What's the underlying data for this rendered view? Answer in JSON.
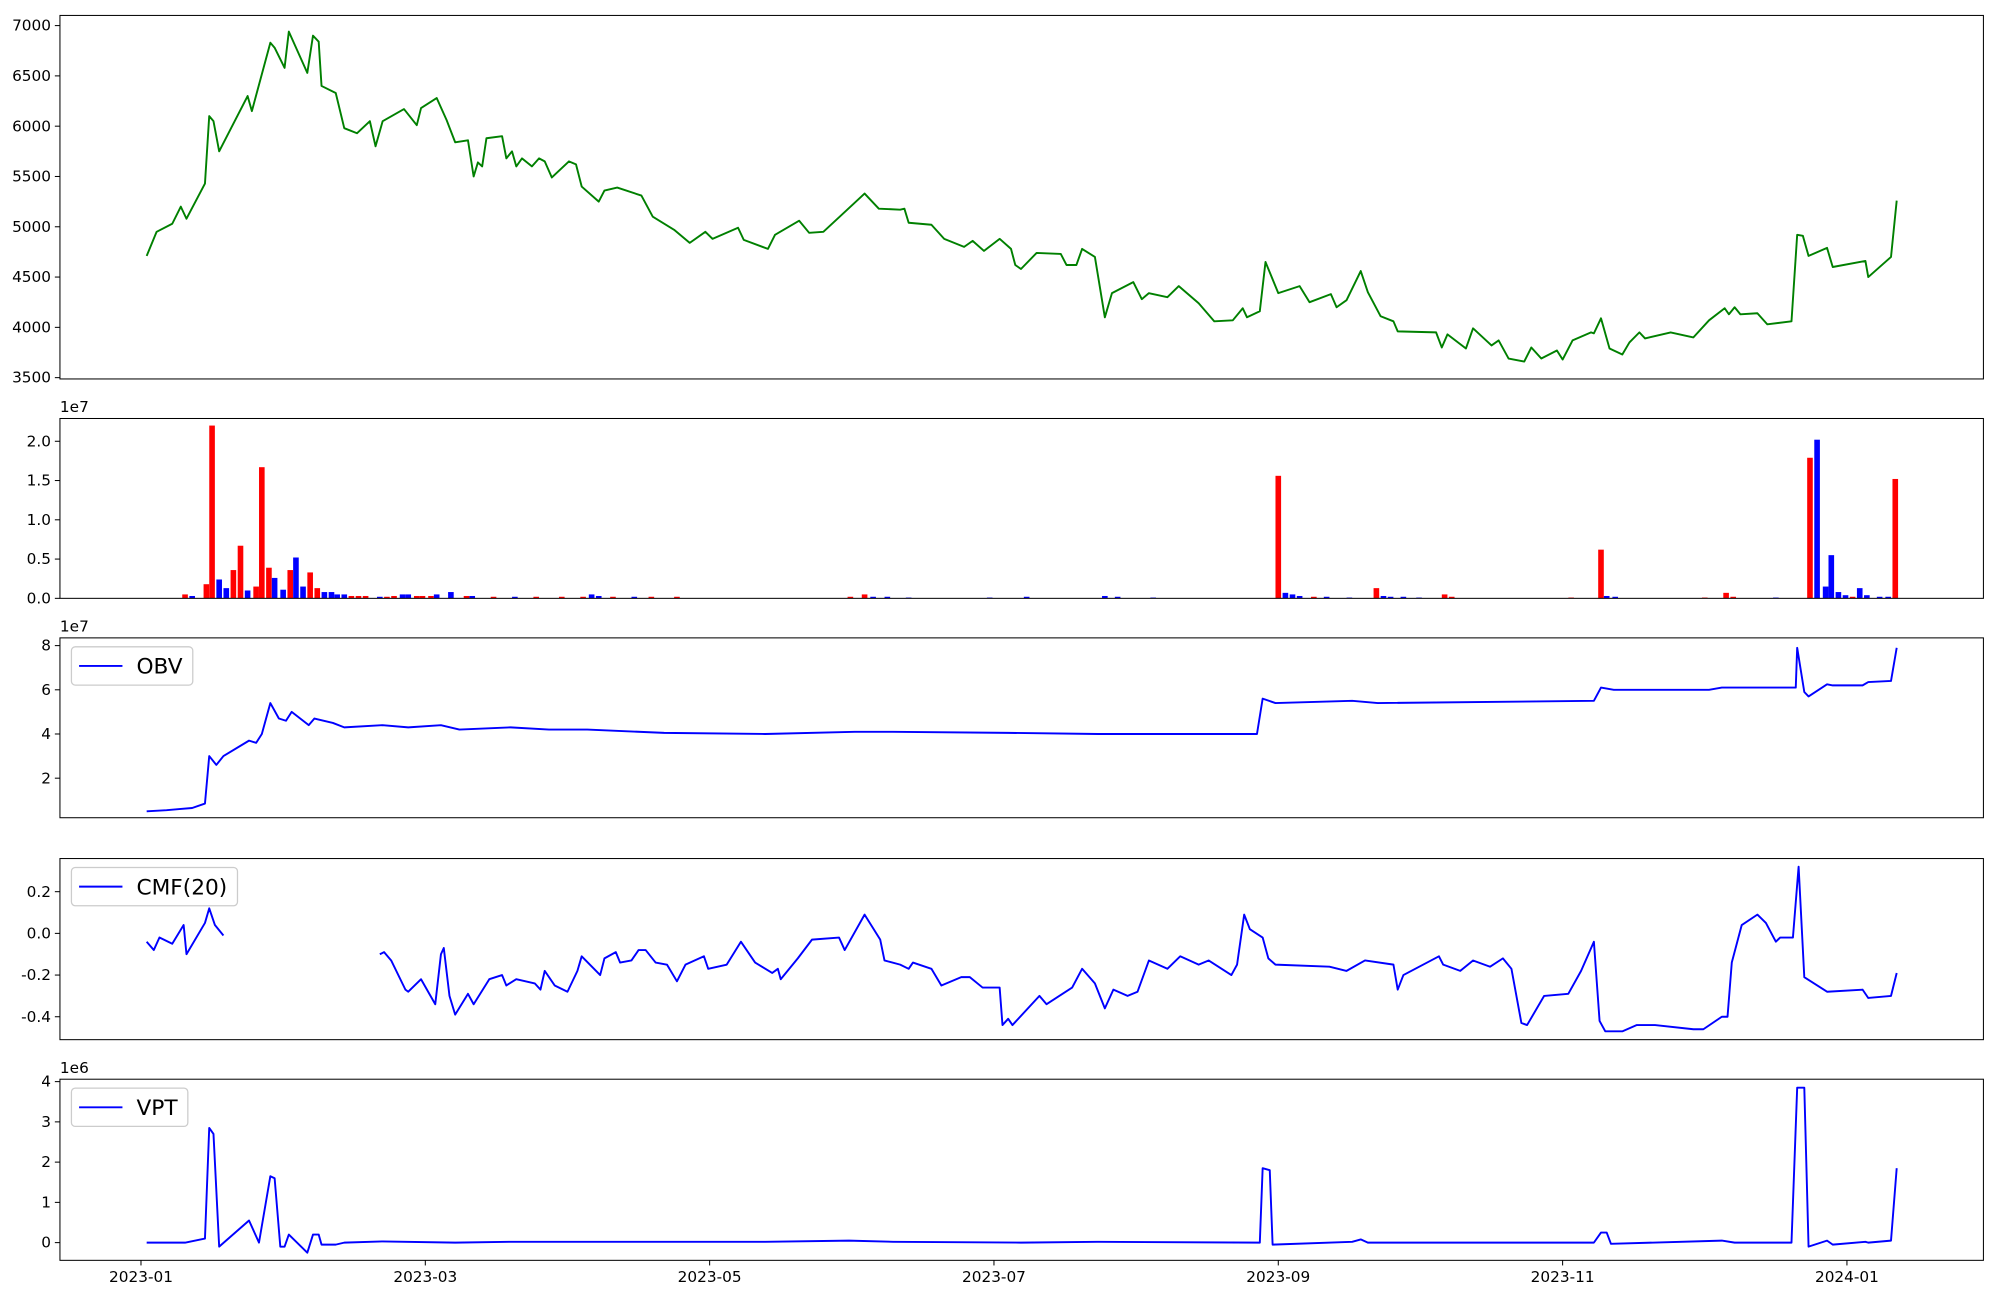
{
  "chart_data": [
    {
      "type": "line",
      "color": "green",
      "x": [
        0.04,
        0.11,
        0.22,
        0.28,
        0.32,
        0.45,
        0.48,
        0.51,
        0.55,
        0.75,
        0.78,
        0.91,
        0.94,
        1.01,
        1.04,
        1.17,
        1.21,
        1.25,
        1.27,
        1.37,
        1.43,
        1.52,
        1.61,
        1.65,
        1.7,
        1.85,
        1.94,
        1.97,
        2.08,
        2.15,
        2.21,
        2.3,
        2.34,
        2.37,
        2.4,
        2.43,
        2.54,
        2.57,
        2.61,
        2.64,
        2.68,
        2.75,
        2.8,
        2.84,
        2.89,
        3.01,
        3.06,
        3.1,
        3.22,
        3.26,
        3.35,
        3.52,
        3.6,
        3.75,
        3.86,
        3.97,
        4.02,
        4.2,
        4.24,
        4.41,
        4.46,
        4.63,
        4.7,
        4.8,
        4.93,
        5.09,
        5.19,
        5.34,
        5.37,
        5.4,
        5.56,
        5.65,
        5.79,
        5.85,
        5.93,
        6.04,
        6.12,
        6.15,
        6.19,
        6.3,
        6.47,
        6.51,
        6.58,
        6.62,
        6.71,
        6.78,
        6.83,
        6.98,
        7.04,
        7.09,
        7.22,
        7.3,
        7.44,
        7.55,
        7.68,
        7.75,
        7.78,
        7.87,
        7.91,
        8.0,
        8.15,
        8.22,
        8.37,
        8.41,
        8.48,
        8.58,
        8.63,
        8.72,
        8.81,
        8.84,
        9.11,
        9.15,
        9.19,
        9.32,
        9.37,
        9.5,
        9.55,
        9.62,
        9.73,
        9.78,
        9.85,
        9.96,
        10.0,
        10.07,
        10.2,
        10.22,
        10.27,
        10.33,
        10.42,
        10.47,
        10.54,
        10.58,
        10.76,
        10.92,
        11.03,
        11.14,
        11.17,
        11.21,
        11.25,
        11.37,
        11.44,
        11.61,
        11.65,
        11.69,
        11.73,
        11.86,
        11.9,
        12.13,
        12.15,
        12.31,
        12.35
      ],
      "values": [
        4710,
        4950,
        5030,
        5200,
        5080,
        5430,
        6100,
        6050,
        5750,
        6300,
        6150,
        6830,
        6780,
        6580,
        6940,
        6530,
        6900,
        6840,
        6400,
        6330,
        5980,
        5930,
        6050,
        5800,
        6050,
        6170,
        6010,
        6180,
        6280,
        6060,
        5840,
        5860,
        5500,
        5640,
        5600,
        5880,
        5900,
        5680,
        5750,
        5600,
        5680,
        5600,
        5680,
        5650,
        5490,
        5650,
        5620,
        5400,
        5250,
        5360,
        5390,
        5310,
        5100,
        4970,
        4840,
        4950,
        4880,
        4990,
        4870,
        4780,
        4920,
        5060,
        4940,
        4950,
        5120,
        5330,
        5180,
        5170,
        5180,
        5040,
        5020,
        4880,
        4800,
        4860,
        4760,
        4880,
        4780,
        4620,
        4580,
        4740,
        4730,
        4620,
        4620,
        4780,
        4700,
        4100,
        4340,
        4450,
        4280,
        4340,
        4300,
        4410,
        4240,
        4060,
        4070,
        4190,
        4100,
        4160,
        4650,
        4340,
        4410,
        4250,
        4330,
        4200,
        4270,
        4560,
        4350,
        4110,
        4060,
        3960,
        3950,
        3800,
        3930,
        3790,
        3990,
        3820,
        3870,
        3690,
        3660,
        3800,
        3690,
        3770,
        3680,
        3870,
        3950,
        3940,
        4090,
        3790,
        3730,
        3850,
        3950,
        3890,
        3950,
        3900,
        4070,
        4190,
        4130,
        4200,
        4130,
        4140,
        4030,
        4060,
        4920,
        4910,
        4710,
        4790,
        4600,
        4660,
        4500,
        4700,
        5260
      ],
      "xlim": [
        -0.57,
        12.96
      ],
      "ylim": [
        3487,
        7101
      ],
      "yticks": [
        3500,
        4000,
        4500,
        5000,
        5500,
        6000,
        6500,
        7000
      ]
    },
    {
      "type": "bar",
      "offset_label": "1e7",
      "x": [
        0.31,
        0.36,
        0.46,
        0.5,
        0.55,
        0.6,
        0.65,
        0.7,
        0.75,
        0.81,
        0.85,
        0.9,
        0.94,
        1.0,
        1.05,
        1.09,
        1.14,
        1.19,
        1.24,
        1.29,
        1.34,
        1.38,
        1.43,
        1.48,
        1.53,
        1.58,
        1.68,
        1.73,
        1.78,
        1.84,
        1.88,
        1.94,
        1.98,
        2.04,
        2.08,
        2.18,
        2.29,
        2.33,
        2.48,
        2.63,
        2.78,
        2.96,
        3.11,
        3.17,
        3.22,
        3.32,
        3.47,
        3.59,
        3.77,
        4.99,
        5.09,
        5.15,
        5.25,
        5.4,
        5.97,
        6.23,
        6.78,
        6.87,
        7.12,
        8.0,
        8.05,
        8.1,
        8.15,
        8.25,
        8.34,
        8.5,
        8.69,
        8.74,
        8.79,
        8.88,
        8.99,
        9.17,
        9.22,
        10.06,
        10.27,
        10.31,
        10.37,
        11.0,
        11.15,
        11.2,
        11.5,
        11.74,
        11.79,
        11.85,
        11.89,
        11.94,
        11.99,
        12.04,
        12.09,
        12.14,
        12.23,
        12.29,
        12.34
      ],
      "values": [
        0.05,
        0.03,
        0.18,
        2.2,
        0.24,
        0.13,
        0.36,
        0.67,
        0.1,
        0.15,
        1.67,
        0.39,
        0.26,
        0.11,
        0.36,
        0.52,
        0.15,
        0.33,
        0.13,
        0.08,
        0.08,
        0.05,
        0.05,
        0.03,
        0.03,
        0.03,
        0.02,
        0.02,
        0.03,
        0.05,
        0.05,
        0.03,
        0.03,
        0.03,
        0.05,
        0.08,
        0.03,
        0.03,
        0.02,
        0.02,
        0.02,
        0.02,
        0.02,
        0.05,
        0.03,
        0.02,
        0.02,
        0.02,
        0.02,
        0.02,
        0.05,
        0.02,
        0.02,
        0.01,
        0.01,
        0.02,
        0.03,
        0.02,
        0.01,
        1.56,
        0.07,
        0.05,
        0.03,
        0.02,
        0.02,
        0.01,
        0.13,
        0.03,
        0.02,
        0.02,
        0.01,
        0.05,
        0.02,
        0.01,
        0.62,
        0.03,
        0.02,
        0.01,
        0.07,
        0.02,
        0.01,
        1.79,
        2.02,
        0.15,
        0.55,
        0.08,
        0.04,
        0.02,
        0.13,
        0.04,
        0.02,
        0.02,
        1.52
      ],
      "colors": [
        "red",
        "blue",
        "red",
        "red",
        "blue",
        "blue",
        "red",
        "red",
        "blue",
        "red",
        "red",
        "red",
        "blue",
        "blue",
        "red",
        "blue",
        "blue",
        "red",
        "red",
        "blue",
        "blue",
        "blue",
        "blue",
        "red",
        "red",
        "red",
        "blue",
        "red",
        "red",
        "blue",
        "blue",
        "red",
        "red",
        "red",
        "blue",
        "blue",
        "red",
        "blue",
        "red",
        "blue",
        "red",
        "red",
        "red",
        "blue",
        "blue",
        "red",
        "blue",
        "red",
        "red",
        "red",
        "red",
        "blue",
        "blue",
        "blue",
        "blue",
        "blue",
        "blue",
        "blue",
        "blue",
        "red",
        "blue",
        "blue",
        "blue",
        "red",
        "blue",
        "blue",
        "red",
        "blue",
        "blue",
        "blue",
        "blue",
        "red",
        "red",
        "red",
        "red",
        "blue",
        "blue",
        "red",
        "red",
        "red",
        "blue",
        "red",
        "blue",
        "blue",
        "blue",
        "blue",
        "blue",
        "red",
        "blue",
        "blue",
        "blue",
        "blue",
        "red"
      ],
      "xlim": [
        -0.57,
        12.96
      ],
      "ylim": [
        0,
        2.29
      ],
      "yticks": [
        {
          "value": 0,
          "label": "0.0"
        },
        0.5,
        {
          "value": 1,
          "label": "1.0"
        },
        1.5,
        {
          "value": 2,
          "label": "2.0"
        }
      ]
    },
    {
      "type": "line",
      "offset_label": "1e7",
      "legend": "upper left",
      "x": [
        0.04,
        0.18,
        0.27,
        0.36,
        0.45,
        0.48,
        0.53,
        0.58,
        0.76,
        0.81,
        0.85,
        0.91,
        0.97,
        1.02,
        1.06,
        1.18,
        1.22,
        1.35,
        1.43,
        1.7,
        1.88,
        2.11,
        2.24,
        2.6,
        2.87,
        3.14,
        3.68,
        4.39,
        5.02,
        5.29,
        6.1,
        6.73,
        7.09,
        7.85,
        7.89,
        7.98,
        8.52,
        8.7,
        10.22,
        10.27,
        10.36,
        11.03,
        11.12,
        11.57,
        11.64,
        11.65,
        11.7,
        11.73,
        11.86,
        11.9,
        12.11,
        12.15,
        12.31,
        12.35
      ],
      "series": [
        {
          "name": "OBV",
          "color": "blue",
          "values": [
            0.5,
            0.55,
            0.6,
            0.65,
            0.85,
            3.0,
            2.6,
            3.0,
            3.7,
            3.6,
            4.0,
            5.4,
            4.7,
            4.6,
            5.0,
            4.4,
            4.7,
            4.5,
            4.3,
            4.4,
            4.3,
            4.4,
            4.2,
            4.3,
            4.2,
            4.2,
            4.05,
            4.0,
            4.1,
            4.1,
            4.05,
            4.0,
            4.0,
            4.0,
            5.6,
            5.4,
            5.5,
            5.4,
            5.5,
            6.1,
            6.0,
            6.0,
            6.1,
            6.1,
            6.1,
            7.9,
            5.9,
            5.7,
            6.25,
            6.2,
            6.2,
            6.35,
            6.4,
            7.9
          ]
        }
      ],
      "xlim": [
        -0.57,
        12.96
      ],
      "ylim": [
        0.21,
        8.35
      ],
      "yticks": [
        2,
        4,
        6,
        8
      ]
    },
    {
      "type": "line",
      "legend": "upper left",
      "x": [
        0.04,
        0.09,
        0.13,
        0.22,
        0.3,
        0.32,
        0.45,
        0.48,
        0.52,
        0.58,
        1.0,
        1.68,
        1.71,
        1.76,
        1.86,
        1.88,
        1.97,
        2.07,
        2.11,
        2.13,
        2.17,
        2.21,
        2.3,
        2.34,
        2.45,
        2.54,
        2.57,
        2.64,
        2.77,
        2.81,
        2.84,
        2.91,
        3.0,
        3.07,
        3.1,
        3.23,
        3.26,
        3.34,
        3.37,
        3.45,
        3.5,
        3.55,
        3.62,
        3.7,
        3.77,
        3.83,
        3.96,
        3.99,
        4.12,
        4.22,
        4.32,
        4.44,
        4.48,
        4.5,
        4.62,
        4.72,
        4.91,
        4.95,
        5.09,
        5.2,
        5.23,
        5.34,
        5.4,
        5.43,
        5.56,
        5.63,
        5.77,
        5.83,
        5.92,
        6.04,
        6.06,
        6.1,
        6.13,
        6.32,
        6.37,
        6.55,
        6.62,
        6.71,
        6.78,
        6.84,
        6.94,
        7.01,
        7.09,
        7.22,
        7.31,
        7.44,
        7.51,
        7.67,
        7.71,
        7.76,
        7.8,
        7.89,
        7.93,
        7.98,
        8.36,
        8.48,
        8.61,
        8.81,
        8.84,
        8.88,
        9.13,
        9.16,
        9.28,
        9.37,
        9.49,
        9.58,
        9.64,
        9.71,
        9.75,
        9.87,
        10.04,
        10.13,
        10.22,
        10.26,
        10.3,
        10.42,
        10.52,
        10.65,
        10.92,
        10.99,
        11.12,
        11.16,
        11.19,
        11.26,
        11.37,
        11.43,
        11.5,
        11.53,
        11.62,
        11.66,
        11.7,
        11.86,
        12.11,
        12.15,
        12.31,
        12.35
      ],
      "series": [
        {
          "name": "CMF(20)",
          "color": "blue",
          "values": [
            -0.04,
            -0.08,
            -0.02,
            -0.05,
            0.04,
            -0.1,
            0.05,
            0.12,
            0.04,
            -0.01,
            null,
            -0.1,
            -0.09,
            -0.13,
            -0.27,
            -0.28,
            -0.22,
            -0.34,
            -0.1,
            -0.07,
            -0.3,
            -0.39,
            -0.29,
            -0.34,
            -0.22,
            -0.2,
            -0.25,
            -0.22,
            -0.24,
            -0.27,
            -0.18,
            -0.25,
            -0.28,
            -0.18,
            -0.11,
            -0.2,
            -0.12,
            -0.09,
            -0.14,
            -0.13,
            -0.08,
            -0.08,
            -0.14,
            -0.15,
            -0.23,
            -0.15,
            -0.11,
            -0.17,
            -0.15,
            -0.04,
            -0.14,
            -0.19,
            -0.17,
            -0.22,
            -0.12,
            -0.03,
            -0.02,
            -0.08,
            0.09,
            -0.03,
            -0.13,
            -0.15,
            -0.17,
            -0.14,
            -0.17,
            -0.25,
            -0.21,
            -0.21,
            -0.26,
            -0.26,
            -0.44,
            -0.41,
            -0.44,
            -0.3,
            -0.34,
            -0.26,
            -0.17,
            -0.24,
            -0.36,
            -0.27,
            -0.3,
            -0.28,
            -0.13,
            -0.17,
            -0.11,
            -0.15,
            -0.13,
            -0.2,
            -0.15,
            0.09,
            0.02,
            -0.02,
            -0.12,
            -0.15,
            -0.16,
            -0.18,
            -0.13,
            -0.15,
            -0.27,
            -0.2,
            -0.11,
            -0.15,
            -0.18,
            -0.13,
            -0.16,
            -0.12,
            -0.17,
            -0.43,
            -0.44,
            -0.3,
            -0.29,
            -0.18,
            -0.04,
            -0.42,
            -0.47,
            -0.47,
            -0.44,
            -0.44,
            -0.46,
            -0.46,
            -0.4,
            -0.4,
            -0.14,
            0.04,
            0.09,
            0.05,
            -0.04,
            -0.02,
            -0.02,
            0.32,
            -0.21,
            -0.28,
            -0.27,
            -0.31,
            -0.3,
            -0.19
          ]
        }
      ],
      "xlim": [
        -0.57,
        12.96
      ],
      "ylim": [
        -0.51,
        0.359
      ],
      "yticks": [
        -0.4,
        -0.2,
        {
          "value": 0,
          "label": "0.0"
        },
        0.2
      ]
    },
    {
      "type": "line",
      "offset_label": "1e6",
      "legend": "upper left",
      "x": [
        0.04,
        0.31,
        0.45,
        0.48,
        0.51,
        0.55,
        0.76,
        0.83,
        0.91,
        0.94,
        0.98,
        1.01,
        1.04,
        1.17,
        1.21,
        1.25,
        1.27,
        1.37,
        1.43,
        1.7,
        2.21,
        2.6,
        4.39,
        4.98,
        5.29,
        6.19,
        6.73,
        7.87,
        7.89,
        7.94,
        7.96,
        8.52,
        8.58,
        8.63,
        10.22,
        10.27,
        10.31,
        10.34,
        11.12,
        11.21,
        11.61,
        11.65,
        11.7,
        11.73,
        11.86,
        11.9,
        12.13,
        12.15,
        12.31,
        12.35
      ],
      "series": [
        {
          "name": "VPT",
          "color": "blue",
          "values": [
            0,
            0,
            0.1,
            2.85,
            2.7,
            -0.1,
            0.55,
            0,
            1.65,
            1.6,
            -0.1,
            -0.1,
            0.2,
            -0.25,
            0.2,
            0.2,
            -0.05,
            -0.05,
            0,
            0.03,
            0,
            0.02,
            0.02,
            0.05,
            0.02,
            0,
            0.02,
            0,
            1.85,
            1.8,
            -0.05,
            0.02,
            0.08,
            0,
            0,
            0.25,
            0.25,
            -0.03,
            0.05,
            0,
            0,
            3.85,
            3.85,
            -0.1,
            0.05,
            -0.05,
            0.02,
            0,
            0.05,
            1.85
          ]
        }
      ],
      "xlim": [
        -0.57,
        12.96
      ],
      "ylim": [
        -0.44,
        4.06
      ],
      "yticks": [
        0,
        1,
        2,
        3,
        4
      ],
      "xticks": [
        {
          "value": 0,
          "label": "2023-01"
        },
        {
          "value": 2,
          "label": "2023-03"
        },
        {
          "value": 4,
          "label": "2023-05"
        },
        {
          "value": 6,
          "label": "2023-07"
        },
        {
          "value": 8,
          "label": "2023-09"
        },
        {
          "value": 10,
          "label": "2023-11"
        },
        {
          "value": 12,
          "label": "2024-01"
        }
      ]
    }
  ]
}
